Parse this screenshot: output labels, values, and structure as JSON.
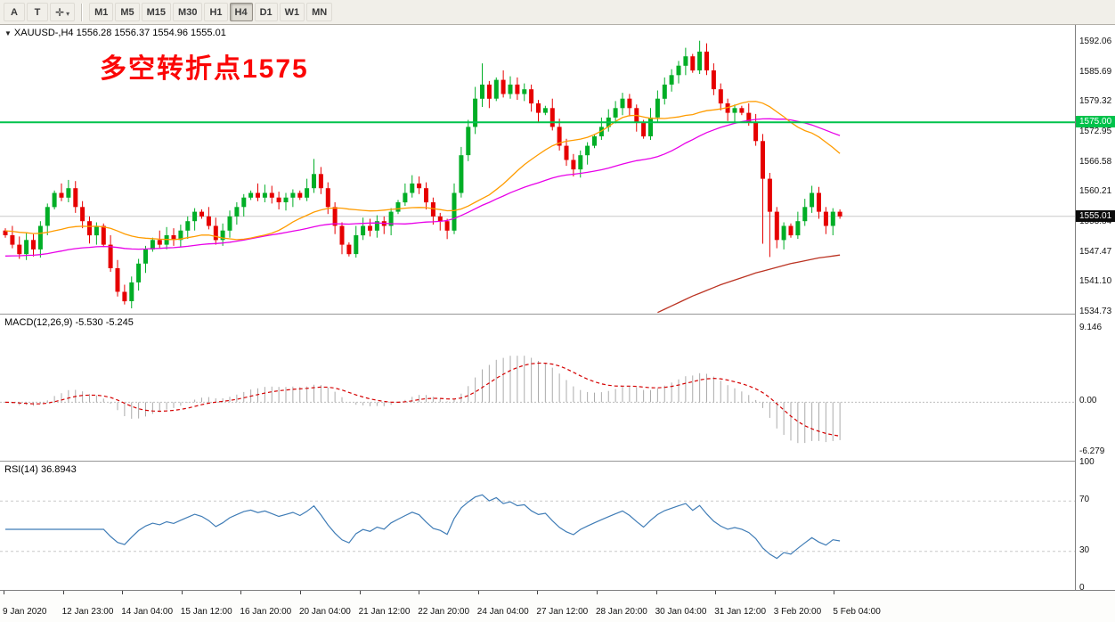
{
  "toolbar": {
    "tool_a": "A",
    "tool_t": "T",
    "tools_icon": "✛",
    "tools_caret": "▾",
    "timeframes": [
      "M1",
      "M5",
      "M15",
      "M30",
      "H1",
      "H4",
      "D1",
      "W1",
      "MN"
    ],
    "active_timeframe": "H4"
  },
  "chart": {
    "collapse_glyph": "▼",
    "symbol_header": "XAUUSD-,H4  1556.28 1556.37 1554.96 1555.01",
    "annotation": "多空转折点1575",
    "hline_label": "1575.00",
    "current_price_label": "1555.01",
    "price_axis": [
      "1592.06",
      "1585.69",
      "1579.32",
      "1572.95",
      "1566.58",
      "1560.21",
      "1553.84",
      "1547.47",
      "1541.10",
      "1534.73"
    ]
  },
  "macd": {
    "header": "MACD(12,26,9) -5.530 -5.245",
    "axis": [
      {
        "label": "9.146",
        "value": 9.146
      },
      {
        "label": "0.00",
        "value": 0
      },
      {
        "label": "-6.279",
        "value": -6.279
      }
    ]
  },
  "rsi": {
    "header": "RSI(14) 36.8943",
    "axis": [
      {
        "label": "100",
        "value": 100
      },
      {
        "label": "70",
        "value": 70
      },
      {
        "label": "30",
        "value": 30
      },
      {
        "label": "0",
        "value": 0
      }
    ]
  },
  "time_axis": [
    "9 Jan 2020",
    "12 Jan 23:00",
    "14 Jan 04:00",
    "15 Jan 12:00",
    "16 Jan 20:00",
    "20 Jan 04:00",
    "21 Jan 12:00",
    "22 Jan 20:00",
    "24 Jan 04:00",
    "27 Jan 12:00",
    "28 Jan 20:00",
    "30 Jan 04:00",
    "31 Jan 12:00",
    "3 Feb 20:00",
    "5 Feb 04:00"
  ],
  "chart_data": {
    "type": "candlestick",
    "symbol": "XAUUSD",
    "timeframe": "H4",
    "price_axis_range": [
      1534.73,
      1592.06
    ],
    "hline_price": 1575.0,
    "current_price": 1555.01,
    "candles": {
      "open_first": 1552,
      "closes": [
        1551,
        1549,
        1547,
        1550,
        1548,
        1553,
        1557,
        1560,
        1559,
        1561,
        1557,
        1554,
        1551,
        1553,
        1549,
        1544,
        1539,
        1537,
        1541,
        1545,
        1548,
        1550,
        1549,
        1551,
        1550,
        1552,
        1554,
        1556,
        1555,
        1553,
        1550,
        1552,
        1555,
        1557,
        1559,
        1560,
        1559,
        1560,
        1559,
        1558,
        1559,
        1560,
        1559,
        1561,
        1564,
        1561,
        1557,
        1553,
        1549,
        1547,
        1551,
        1553,
        1552,
        1554,
        1553,
        1556,
        1558,
        1560,
        1562,
        1561,
        1558,
        1555,
        1554,
        1552,
        1560,
        1568,
        1574,
        1580,
        1583,
        1580,
        1584,
        1581,
        1583,
        1581,
        1582,
        1579,
        1577,
        1578,
        1574,
        1570,
        1567,
        1565,
        1568,
        1570,
        1572,
        1574,
        1576,
        1578,
        1580,
        1578,
        1575,
        1572,
        1576,
        1580,
        1583,
        1585,
        1587,
        1589,
        1586,
        1590,
        1586,
        1582,
        1579,
        1577,
        1578,
        1577,
        1575,
        1571,
        1563,
        1556,
        1550,
        1553,
        1551,
        1554,
        1557,
        1560,
        1556,
        1553,
        1556,
        1555
      ],
      "wick_overrides": {
        "17": {
          "low": 1536.3
        },
        "44": {
          "high": 1567.2
        },
        "63": {
          "low": 1550.2
        },
        "67": {
          "high": 1582.5
        },
        "68": {
          "high": 1587.5
        },
        "97": {
          "high": 1590.8
        },
        "99": {
          "high": 1592.3
        },
        "108": {
          "low": 1549.2
        },
        "109": {
          "low": 1546.4
        }
      },
      "up_color": "#00ae26",
      "down_color": "#e60000"
    },
    "ma_fast": {
      "period": 24,
      "color": "#ff9c00",
      "seed": 1552
    },
    "ma_slow": {
      "period": 48,
      "color": "#e800e8",
      "seed": 1546.5
    },
    "ma_long": {
      "color": "#bb3322",
      "start_index": 93,
      "values": [
        1534.6,
        1535.3,
        1536.0,
        1536.7,
        1537.4,
        1538.1,
        1538.7,
        1539.3,
        1539.9,
        1540.5,
        1541.0,
        1541.5,
        1542.0,
        1542.5,
        1543.0,
        1543.4,
        1543.8,
        1544.2,
        1544.6,
        1545.0,
        1545.3,
        1545.6,
        1545.9,
        1546.2,
        1546.4,
        1546.6,
        1546.8
      ]
    },
    "macd": {
      "fast": 12,
      "slow": 26,
      "signal": 9,
      "scale_max": 9.146,
      "scale_min": -6.279,
      "bar_color": "#ababab",
      "signal_color": "#d40000"
    },
    "rsi": {
      "period": 14,
      "levels": [
        70,
        30
      ],
      "line_color": "#3f7cb6"
    },
    "hline_color": "#00c24b"
  }
}
